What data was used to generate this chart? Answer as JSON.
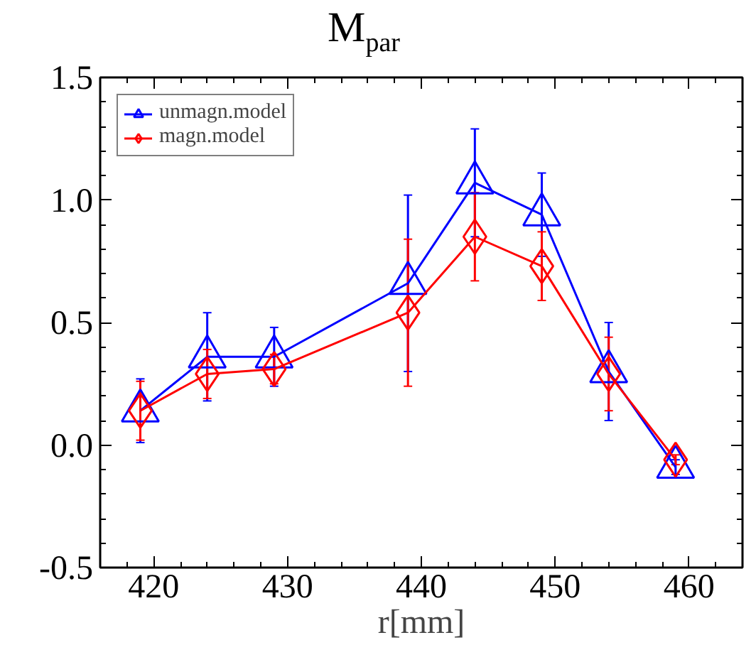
{
  "chart_data": {
    "type": "line",
    "title": "M$_{par}$",
    "xlabel": "r[mm]",
    "x": [
      419,
      424,
      429,
      439,
      444,
      449,
      454,
      459
    ],
    "series": [
      {
        "name": "unmagn.model",
        "color": "#0000ff",
        "marker": "triangle",
        "values": [
          0.14,
          0.36,
          0.36,
          0.66,
          1.07,
          0.94,
          0.3,
          -0.09
        ],
        "errors": [
          0.13,
          0.18,
          0.12,
          0.36,
          0.22,
          0.17,
          0.2,
          0.03
        ]
      },
      {
        "name": "magn.model",
        "color": "#ff0000",
        "marker": "diamond",
        "values": [
          0.14,
          0.29,
          0.31,
          0.54,
          0.85,
          0.73,
          0.29,
          -0.06
        ],
        "errors": [
          0.12,
          0.1,
          0.06,
          0.3,
          0.18,
          0.14,
          0.15,
          0.02
        ]
      }
    ],
    "xlim": [
      416,
      464
    ],
    "xticks": [
      420,
      430,
      440,
      450,
      460
    ],
    "ylim": [
      -0.5,
      1.5
    ],
    "yticks": [
      {
        "value": -0.5,
        "label": "-0.5"
      },
      {
        "value": 0,
        "label": "0.0"
      },
      {
        "value": 0.5,
        "label": "0.5"
      },
      {
        "value": 1,
        "label": "1.0"
      },
      {
        "value": 1.5,
        "label": "1.5"
      }
    ],
    "legend": "top left",
    "grid": false
  }
}
